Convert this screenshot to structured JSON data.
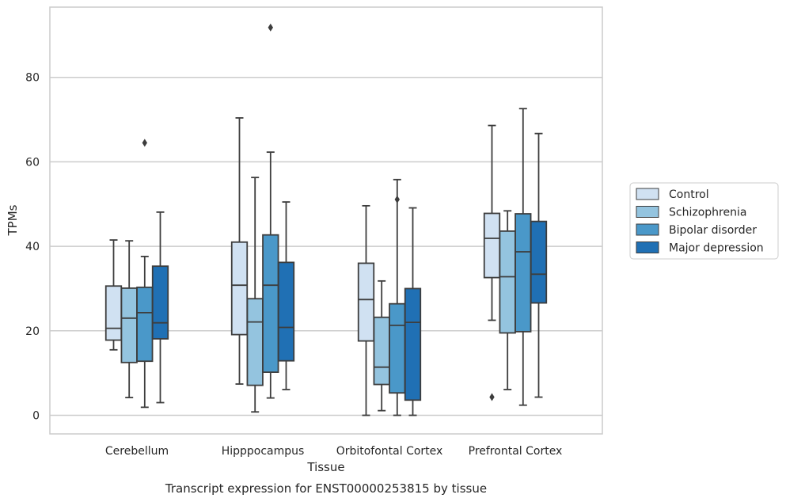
{
  "caption": "Transcript expression for ENST00000253815 by tissue",
  "chart_data": {
    "type": "box",
    "xlabel": "Tissue",
    "ylabel": "TPMs",
    "ylim": [
      -4.5,
      97
    ],
    "yticks": [
      0,
      20,
      40,
      60,
      80
    ],
    "grid": "horizontal",
    "legend_position": "right",
    "categories": [
      "Cerebellum",
      "Hipppocampus",
      "Orbitofontal Cortex",
      "Prefrontal Cortex"
    ],
    "series": [
      {
        "name": "Control",
        "color": "#d0e1f2",
        "boxes": [
          {
            "whisker_low": 15.5,
            "q1": 17.8,
            "median": 20.6,
            "q3": 30.6,
            "whisker_high": 41.5,
            "outliers": []
          },
          {
            "whisker_low": 7.4,
            "q1": 19.1,
            "median": 30.8,
            "q3": 41.0,
            "whisker_high": 70.4,
            "outliers": []
          },
          {
            "whisker_low": 0.0,
            "q1": 17.6,
            "median": 27.4,
            "q3": 36.0,
            "whisker_high": 49.6,
            "outliers": []
          },
          {
            "whisker_low": 22.5,
            "q1": 32.6,
            "median": 41.9,
            "q3": 47.8,
            "whisker_high": 68.6,
            "outliers": [
              4.3
            ]
          }
        ]
      },
      {
        "name": "Schizophrenia",
        "color": "#94c4df",
        "boxes": [
          {
            "whisker_low": 4.2,
            "q1": 12.5,
            "median": 23.0,
            "q3": 30.1,
            "whisker_high": 41.3,
            "outliers": []
          },
          {
            "whisker_low": 0.8,
            "q1": 7.1,
            "median": 22.1,
            "q3": 27.6,
            "whisker_high": 56.3,
            "outliers": []
          },
          {
            "whisker_low": 1.1,
            "q1": 7.3,
            "median": 11.4,
            "q3": 23.2,
            "whisker_high": 31.8,
            "outliers": []
          },
          {
            "whisker_low": 6.1,
            "q1": 19.5,
            "median": 32.8,
            "q3": 43.6,
            "whisker_high": 48.4,
            "outliers": []
          }
        ]
      },
      {
        "name": "Bipolar disorder",
        "color": "#4a98c9",
        "boxes": [
          {
            "whisker_low": 1.9,
            "q1": 12.8,
            "median": 24.3,
            "q3": 30.3,
            "whisker_high": 37.6,
            "outliers": [
              64.5
            ]
          },
          {
            "whisker_low": 4.1,
            "q1": 10.2,
            "median": 30.8,
            "q3": 42.7,
            "whisker_high": 62.3,
            "outliers": [
              91.8
            ]
          },
          {
            "whisker_low": 0.0,
            "q1": 5.3,
            "median": 21.3,
            "q3": 26.4,
            "whisker_high": 55.8,
            "outliers": [
              51.1
            ]
          },
          {
            "whisker_low": 2.4,
            "q1": 19.8,
            "median": 38.7,
            "q3": 47.7,
            "whisker_high": 72.6,
            "outliers": []
          }
        ]
      },
      {
        "name": "Major depression",
        "color": "#2070b4",
        "boxes": [
          {
            "whisker_low": 3.0,
            "q1": 18.1,
            "median": 21.9,
            "q3": 35.3,
            "whisker_high": 48.1,
            "outliers": []
          },
          {
            "whisker_low": 6.1,
            "q1": 12.9,
            "median": 20.8,
            "q3": 36.2,
            "whisker_high": 50.5,
            "outliers": []
          },
          {
            "whisker_low": 0.0,
            "q1": 3.6,
            "median": 22.0,
            "q3": 30.0,
            "whisker_high": 49.1,
            "outliers": []
          },
          {
            "whisker_low": 4.3,
            "q1": 26.6,
            "median": 33.4,
            "q3": 45.9,
            "whisker_high": 66.7,
            "outliers": []
          }
        ]
      }
    ]
  }
}
